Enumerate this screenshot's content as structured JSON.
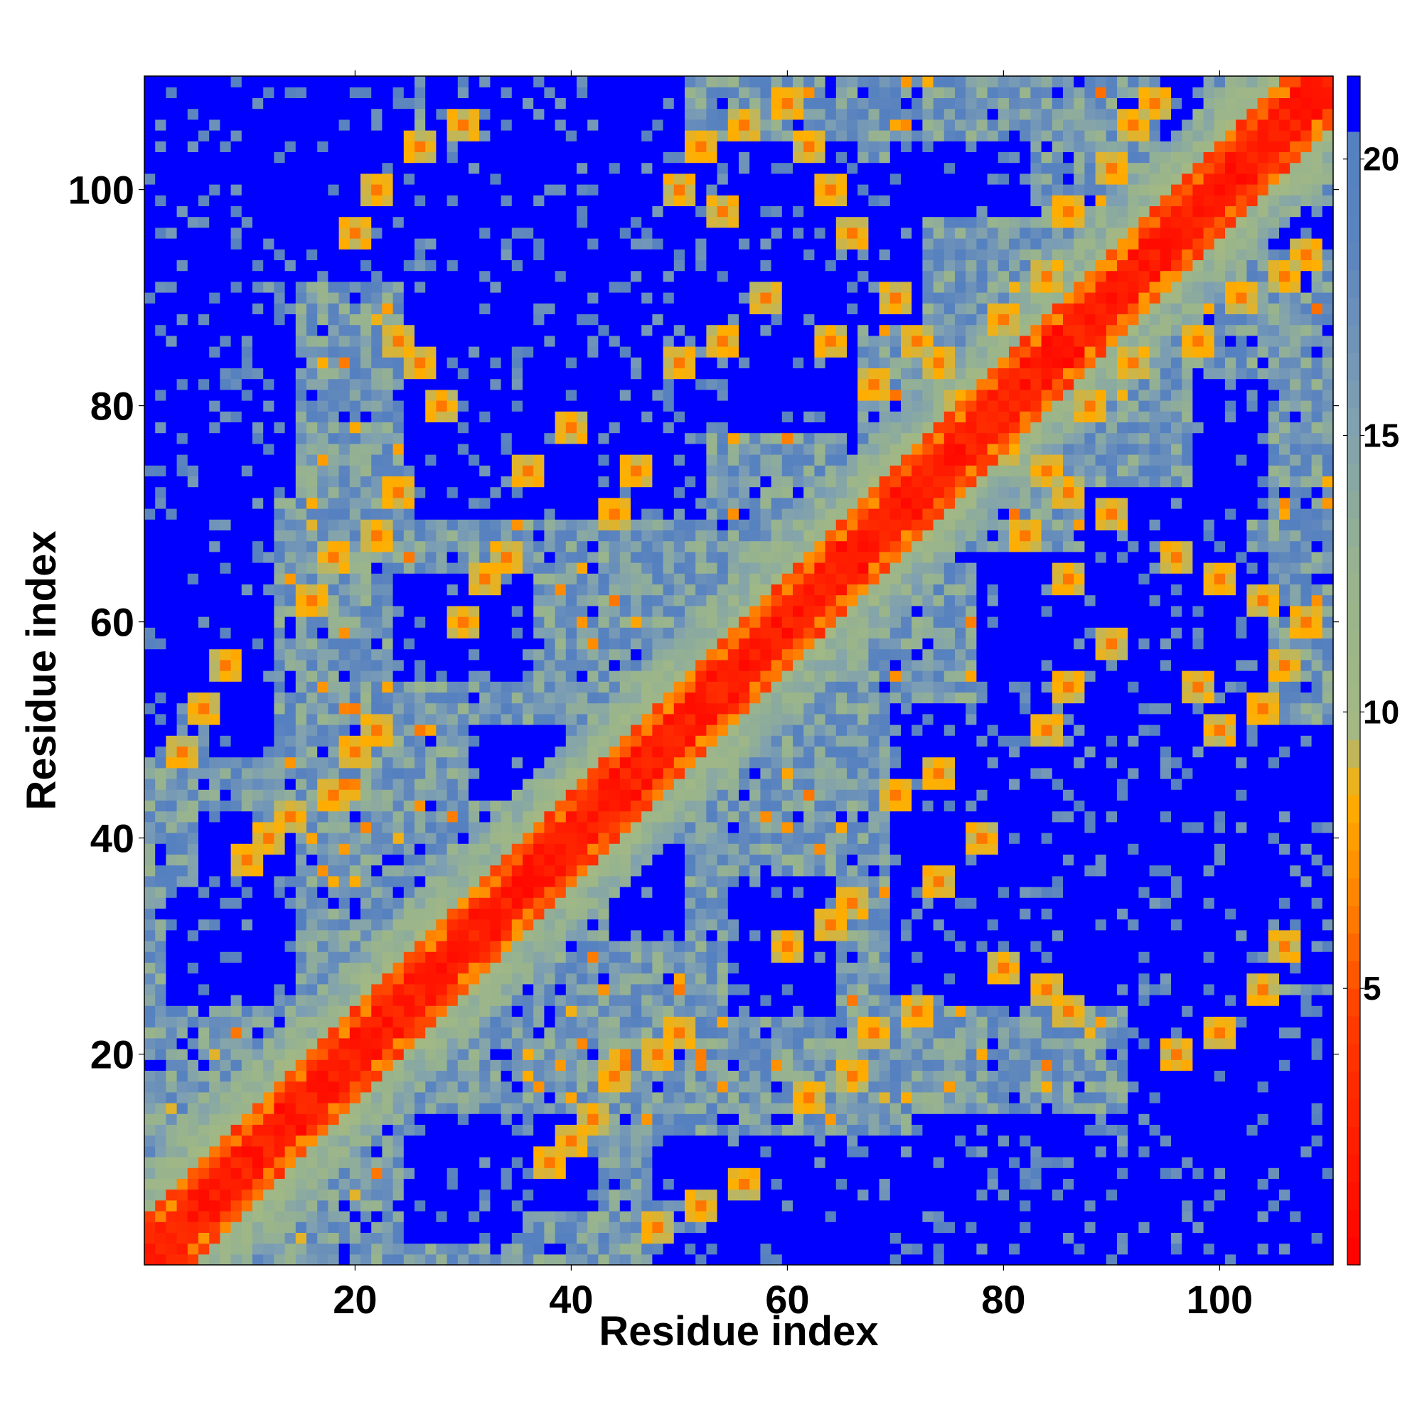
{
  "chart_data": {
    "type": "heatmap",
    "title": "",
    "xlabel": "Residue index",
    "ylabel": "Residue index",
    "n_residues": 110,
    "xlim": [
      0.5,
      110.5
    ],
    "ylim": [
      0.5,
      110.5
    ],
    "x_ticks": [
      20,
      40,
      60,
      80,
      100
    ],
    "y_ticks": [
      20,
      40,
      60,
      80,
      100
    ],
    "value_unit": "",
    "colorbar": {
      "range": [
        0,
        21.5
      ],
      "ticks": [
        5,
        10,
        15,
        20
      ],
      "stops": [
        {
          "value": 0,
          "color": "#ff0000"
        },
        {
          "value": 4.5,
          "color": "#ff3c00"
        },
        {
          "value": 6.5,
          "color": "#ff8000"
        },
        {
          "value": 8.5,
          "color": "#ffb000"
        },
        {
          "value": 9.6,
          "color": "#a4b882"
        },
        {
          "value": 12.5,
          "color": "#98b48e"
        },
        {
          "value": 15.5,
          "color": "#7d9fb3"
        },
        {
          "value": 18.5,
          "color": "#5b84bf"
        },
        {
          "value": 20.5,
          "color": "#5480c0"
        },
        {
          "value": 20.51,
          "color": "#0000ff"
        },
        {
          "value": 21.5,
          "color": "#0000ff"
        }
      ]
    },
    "max_value": 21,
    "diagonal_band": {
      "full_contact_halfwidth": 2,
      "contact_halfwidth": 4,
      "near_halfwidth": 9
    },
    "far_regions": [
      {
        "i": [
          1,
          9
        ],
        "j": [
          92,
          110
        ]
      },
      {
        "i": [
          1,
          14
        ],
        "j": [
          72,
          90
        ]
      },
      {
        "i": [
          3,
          12
        ],
        "j": [
          25,
          35
        ]
      },
      {
        "i": [
          25,
          42
        ],
        "j": [
          6,
          14
        ]
      },
      {
        "i": [
          26,
          52
        ],
        "j": [
          70,
          90
        ]
      },
      {
        "i": [
          38,
          66
        ],
        "j": [
          78,
          104
        ]
      },
      {
        "i": [
          44,
          50
        ],
        "j": [
          31,
          40
        ]
      },
      {
        "i": [
          55,
          64
        ],
        "j": [
          24,
          36
        ]
      },
      {
        "i": [
          48,
          75
        ],
        "j": [
          1,
          12
        ]
      },
      {
        "i": [
          75,
          98
        ],
        "j": [
          1,
          10
        ]
      },
      {
        "i": [
          75,
          103
        ],
        "j": [
          25,
          50
        ]
      },
      {
        "i": [
          80,
          96
        ],
        "j": [
          40,
          62
        ]
      },
      {
        "i": [
          88,
          102
        ],
        "j": [
          63,
          72
        ]
      },
      {
        "i": [
          92,
          110
        ],
        "j": [
          1,
          25
        ]
      },
      {
        "i": [
          95,
          110
        ],
        "j": [
          27,
          50
        ]
      },
      {
        "i": [
          98,
          104
        ],
        "j": [
          70,
          82
        ]
      },
      {
        "i": [
          104,
          110
        ],
        "j": [
          95,
          98
        ]
      }
    ],
    "contact_points": [
      [
        10,
        38
      ],
      [
        12,
        40
      ],
      [
        14,
        42
      ],
      [
        18,
        44
      ],
      [
        20,
        48
      ],
      [
        22,
        50
      ],
      [
        16,
        62
      ],
      [
        18,
        66
      ],
      [
        22,
        68
      ],
      [
        24,
        72
      ],
      [
        30,
        60
      ],
      [
        32,
        64
      ],
      [
        34,
        66
      ],
      [
        6,
        52
      ],
      [
        4,
        48
      ],
      [
        8,
        56
      ],
      [
        20,
        96
      ],
      [
        22,
        100
      ],
      [
        26,
        104
      ],
      [
        30,
        106
      ],
      [
        50,
        100
      ],
      [
        52,
        104
      ],
      [
        56,
        106
      ],
      [
        60,
        108
      ],
      [
        54,
        98
      ],
      [
        62,
        104
      ],
      [
        64,
        100
      ],
      [
        66,
        96
      ],
      [
        70,
        90
      ],
      [
        72,
        86
      ],
      [
        74,
        84
      ],
      [
        76,
        80
      ],
      [
        80,
        88
      ],
      [
        84,
        92
      ],
      [
        86,
        98
      ],
      [
        90,
        102
      ],
      [
        92,
        106
      ],
      [
        94,
        108
      ],
      [
        68,
        82
      ],
      [
        64,
        86
      ],
      [
        58,
        90
      ],
      [
        54,
        86
      ],
      [
        50,
        84
      ],
      [
        44,
        70
      ],
      [
        46,
        74
      ],
      [
        40,
        78
      ],
      [
        36,
        74
      ],
      [
        28,
        80
      ],
      [
        26,
        84
      ],
      [
        24,
        86
      ]
    ]
  }
}
